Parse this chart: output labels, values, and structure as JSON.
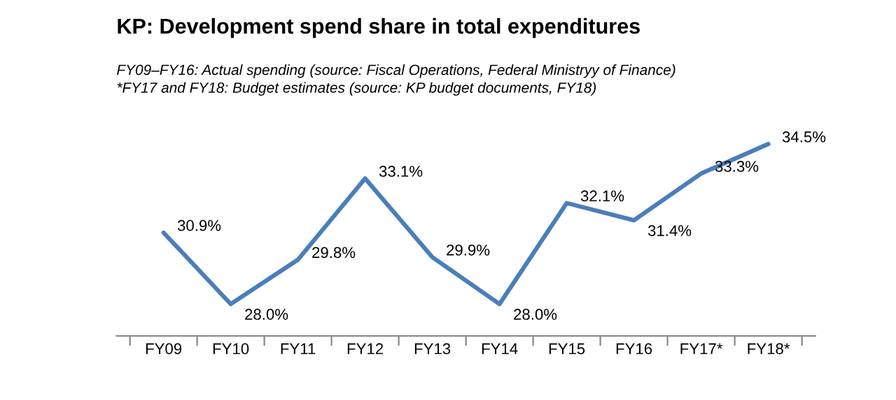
{
  "chart_data": {
    "type": "line",
    "title": "KP: Development spend share in total expenditures",
    "subtitle": "FY09–FY16: Actual spending (source: Fiscal Operations, Federal Ministryy of Finance)\n*FY17 and FY18: Budget estimates (source: KP budget documents, FY18)",
    "categories": [
      "FY09",
      "FY10",
      "FY11",
      "FY12",
      "FY13",
      "FY14",
      "FY15",
      "FY16",
      "FY17*",
      "FY18*"
    ],
    "series": [
      {
        "color": "#4a7ebb",
        "values": [
          30.9,
          28.0,
          29.8,
          33.1,
          29.9,
          28.0,
          32.1,
          31.4,
          33.3,
          34.5
        ],
        "value_labels": [
          "30.9%",
          "28.0%",
          "29.8%",
          "33.1%",
          "29.9%",
          "28.0%",
          "32.1%",
          "31.4%",
          "33.3%",
          "34.5%"
        ]
      }
    ],
    "tick_labels": "x",
    "grid": false,
    "legend": false,
    "marker": "none",
    "line_style": "solid"
  }
}
